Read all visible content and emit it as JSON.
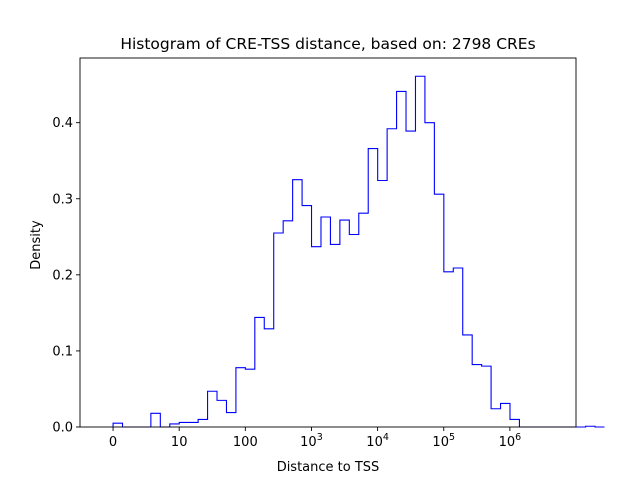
{
  "chart_data": {
    "type": "histogram",
    "title": "Histogram of CRE-TSS distance, based on: 2798 CREs",
    "xlabel": "Distance to TSS",
    "ylabel": "Density",
    "x_scale": "symlog",
    "xlim": [
      -0.5,
      7
    ],
    "ylim": [
      0,
      0.485
    ],
    "grid": false,
    "line_color": "#0000ff",
    "x_ticks": [
      {
        "pos": 0,
        "base": "0",
        "exp": ""
      },
      {
        "pos": 1,
        "base": "10",
        "exp": ""
      },
      {
        "pos": 2,
        "base": "100",
        "exp": ""
      },
      {
        "pos": 3,
        "base": "10",
        "exp": "3"
      },
      {
        "pos": 4,
        "base": "10",
        "exp": "4"
      },
      {
        "pos": 5,
        "base": "10",
        "exp": "5"
      },
      {
        "pos": 6,
        "base": "10",
        "exp": "6"
      }
    ],
    "y_ticks": [
      {
        "value": 0.0,
        "label": "0.0"
      },
      {
        "value": 0.1,
        "label": "0.1"
      },
      {
        "value": 0.2,
        "label": "0.2"
      },
      {
        "value": 0.3,
        "label": "0.3"
      },
      {
        "value": 0.4,
        "label": "0.4"
      }
    ],
    "bin_start": 0.0,
    "bin_width": 0.1429,
    "values": [
      0.005,
      0.0,
      0.0,
      0.0,
      0.018,
      0.0,
      0.004,
      0.006,
      0.006,
      0.01,
      0.047,
      0.035,
      0.019,
      0.078,
      0.076,
      0.144,
      0.129,
      0.255,
      0.271,
      0.325,
      0.291,
      0.237,
      0.276,
      0.24,
      0.272,
      0.253,
      0.281,
      0.366,
      0.324,
      0.392,
      0.441,
      0.389,
      0.461,
      0.4,
      0.306,
      0.204,
      0.209,
      0.121,
      0.082,
      0.08,
      0.024,
      0.031,
      0.01,
      0.0,
      0.0,
      0.0,
      0.0,
      0.0,
      0.0,
      0.0,
      0.001,
      0.0
    ]
  }
}
